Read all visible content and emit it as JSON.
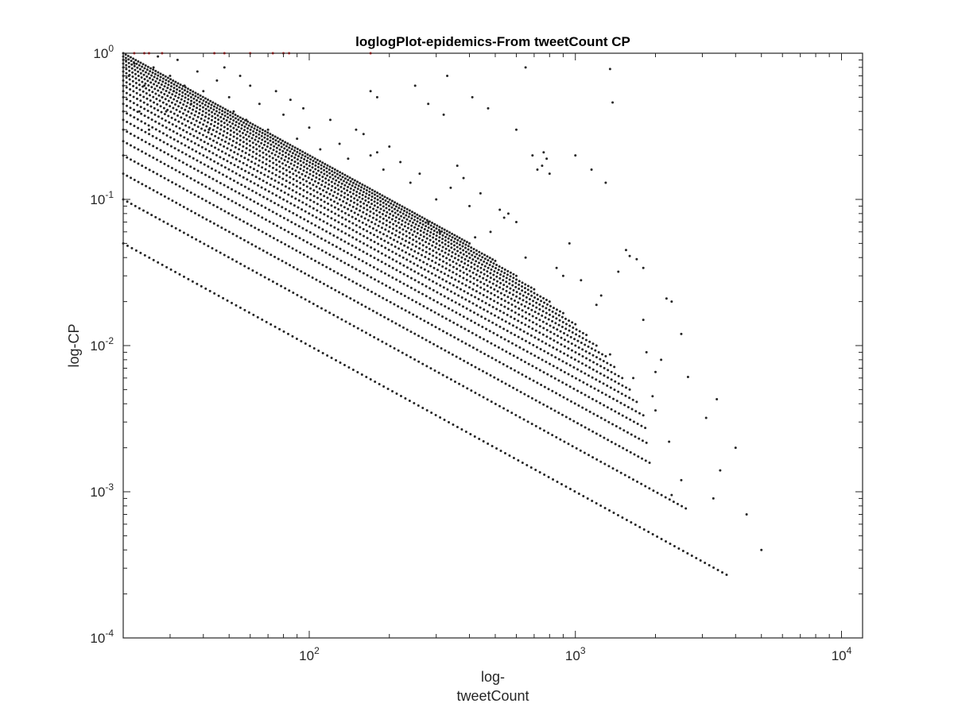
{
  "chart_data": {
    "type": "scatter",
    "title": "loglogPlot-epidemics-From tweetCount CP",
    "xlabel_lines": [
      "log-",
      "tweetCount"
    ],
    "ylabel": "log-CP",
    "xscale": "log",
    "yscale": "log",
    "xlim": [
      20,
      12000
    ],
    "ylim": [
      0.0001,
      1
    ],
    "grid": false,
    "legend": "none",
    "x_ticks": [
      {
        "value": 100,
        "base": "10",
        "exp": "2"
      },
      {
        "value": 1000,
        "base": "10",
        "exp": "3"
      },
      {
        "value": 10000,
        "base": "10",
        "exp": "4"
      }
    ],
    "y_ticks": [
      {
        "value": 0.0001,
        "base": "10",
        "exp": "-4"
      },
      {
        "value": 0.001,
        "base": "10",
        "exp": "-3"
      },
      {
        "value": 0.01,
        "base": "10",
        "exp": "-2"
      },
      {
        "value": 0.1,
        "base": "10",
        "exp": "-1"
      },
      {
        "value": 1,
        "base": "10",
        "exp": "0"
      }
    ],
    "point_color": "#262626",
    "highlight_color": "#e01b1b",
    "series": [
      {
        "pattern": "k/x",
        "k_values": [
          1,
          2,
          3,
          4,
          5,
          6,
          7,
          8,
          9,
          10,
          11,
          12,
          13,
          14,
          15,
          16,
          17,
          18,
          19,
          20
        ],
        "x_max": [
          3700,
          2600,
          1900,
          1850,
          1830,
          1800,
          1700,
          1600,
          1500,
          1400,
          1300,
          1200,
          1100,
          1000,
          900,
          800,
          700,
          600,
          500,
          400
        ]
      }
    ],
    "scatter_points": [
      [
        4000,
        0.002
      ],
      [
        5000,
        0.0004
      ],
      [
        4400,
        0.0007
      ],
      [
        3500,
        0.0014
      ],
      [
        3300,
        0.0009
      ],
      [
        3400,
        0.0043
      ],
      [
        3100,
        0.0032
      ],
      [
        2500,
        0.0012
      ],
      [
        2300,
        0.00095
      ],
      [
        2250,
        0.0022
      ],
      [
        2100,
        0.008
      ],
      [
        2500,
        0.012
      ],
      [
        2650,
        0.0061
      ],
      [
        2300,
        0.02
      ],
      [
        2200,
        0.021
      ],
      [
        2000,
        0.0066
      ],
      [
        2000,
        0.0036
      ],
      [
        1950,
        0.0045
      ],
      [
        1850,
        0.009
      ],
      [
        1800,
        0.015
      ],
      [
        1800,
        0.034
      ],
      [
        1700,
        0.039
      ],
      [
        1600,
        0.041
      ],
      [
        1550,
        0.045
      ],
      [
        1450,
        0.032
      ],
      [
        1650,
        0.006
      ],
      [
        1350,
        0.0087
      ],
      [
        1300,
        0.13
      ],
      [
        1250,
        0.022
      ],
      [
        1200,
        0.019
      ],
      [
        1150,
        0.16
      ],
      [
        1000,
        0.2
      ],
      [
        1050,
        0.028
      ],
      [
        950,
        0.05
      ],
      [
        900,
        0.03
      ],
      [
        850,
        0.034
      ],
      [
        800,
        0.15
      ],
      [
        780,
        0.19
      ],
      [
        760,
        0.21
      ],
      [
        750,
        0.17
      ],
      [
        720,
        0.16
      ],
      [
        690,
        0.2
      ],
      [
        650,
        0.04
      ],
      [
        600,
        0.07
      ],
      [
        560,
        0.08
      ],
      [
        540,
        0.075
      ],
      [
        520,
        0.085
      ],
      [
        480,
        0.06
      ],
      [
        440,
        0.11
      ],
      [
        420,
        0.055
      ],
      [
        400,
        0.09
      ],
      [
        380,
        0.14
      ],
      [
        360,
        0.17
      ],
      [
        340,
        0.12
      ],
      [
        310,
        0.06
      ],
      [
        300,
        0.1
      ],
      [
        280,
        0.07
      ],
      [
        260,
        0.15
      ],
      [
        240,
        0.13
      ],
      [
        220,
        0.18
      ],
      [
        200,
        0.23
      ],
      [
        190,
        0.16
      ],
      [
        180,
        0.21
      ],
      [
        170,
        0.2
      ],
      [
        160,
        0.28
      ],
      [
        150,
        0.3
      ],
      [
        140,
        0.19
      ],
      [
        130,
        0.24
      ],
      [
        120,
        0.35
      ],
      [
        110,
        0.22
      ],
      [
        100,
        0.31
      ],
      [
        95,
        0.42
      ],
      [
        90,
        0.26
      ],
      [
        85,
        0.48
      ],
      [
        80,
        0.38
      ],
      [
        75,
        0.55
      ],
      [
        70,
        0.3
      ],
      [
        65,
        0.45
      ],
      [
        60,
        0.6
      ],
      [
        58,
        0.35
      ],
      [
        55,
        0.7
      ],
      [
        52,
        0.4
      ],
      [
        50,
        0.5
      ],
      [
        48,
        0.8
      ],
      [
        45,
        0.65
      ],
      [
        42,
        0.3
      ],
      [
        40,
        0.55
      ],
      [
        38,
        0.75
      ],
      [
        36,
        0.45
      ],
      [
        34,
        0.6
      ],
      [
        32,
        0.9
      ],
      [
        30,
        0.7
      ],
      [
        28,
        0.5
      ],
      [
        26,
        0.8
      ],
      [
        24,
        0.6
      ],
      [
        22,
        0.85
      ],
      [
        21,
        0.7
      ],
      [
        23,
        0.4
      ],
      [
        25,
        0.3
      ],
      [
        27,
        0.95
      ],
      [
        29,
        0.4
      ],
      [
        31,
        0.55
      ],
      [
        410,
        0.5
      ],
      [
        600,
        0.3
      ],
      [
        650,
        0.8
      ],
      [
        1350,
        0.78
      ],
      [
        1380,
        0.46
      ],
      [
        180,
        0.5
      ],
      [
        170,
        0.55
      ],
      [
        250,
        0.6
      ],
      [
        280,
        0.45
      ],
      [
        320,
        0.38
      ],
      [
        470,
        0.42
      ],
      [
        330,
        0.7
      ]
    ],
    "highlight_points": [
      [
        22,
        1
      ],
      [
        24,
        1
      ],
      [
        25,
        1
      ],
      [
        28,
        1
      ],
      [
        44,
        1
      ],
      [
        48,
        1
      ],
      [
        60,
        1
      ],
      [
        73,
        1
      ],
      [
        80,
        1
      ],
      [
        84,
        1
      ],
      [
        170,
        1
      ]
    ]
  }
}
